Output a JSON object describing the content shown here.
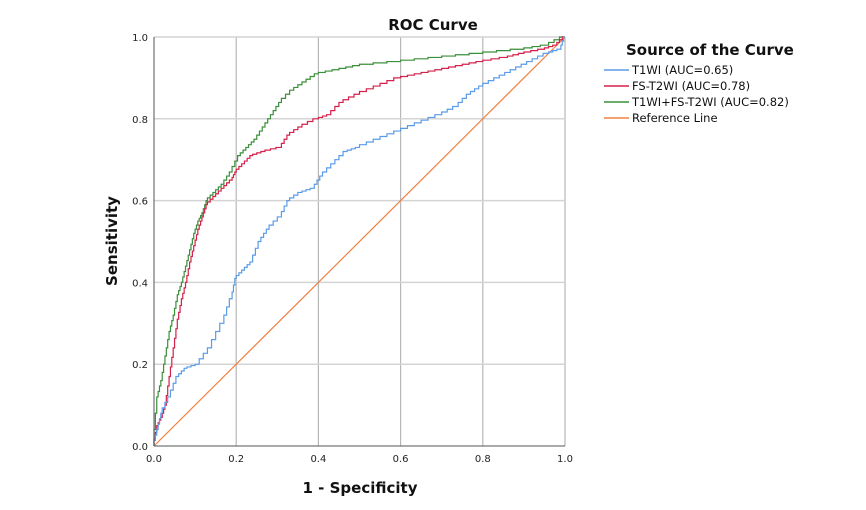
{
  "chart_data": {
    "type": "line",
    "title": "ROC Curve",
    "xlabel": "1 - Specificity",
    "ylabel": "Sensitivity",
    "xlim": [
      0,
      1
    ],
    "ylim": [
      0,
      1
    ],
    "xticks": [
      "0.0",
      "0.2",
      "0.4",
      "0.6",
      "0.8",
      "1.0"
    ],
    "yticks": [
      "0.0",
      "0.2",
      "0.4",
      "0.6",
      "0.8",
      "1.0"
    ],
    "grid": true,
    "legend": {
      "title": "Source of the Curve",
      "position": "right"
    },
    "series": [
      {
        "name": "T1WI (AUC=0.65)",
        "color": "#5b9be8",
        "step": true,
        "points": [
          [
            0,
            0
          ],
          [
            0.01,
            0.04
          ],
          [
            0.02,
            0.08
          ],
          [
            0.04,
            0.12
          ],
          [
            0.06,
            0.17
          ],
          [
            0.08,
            0.19
          ],
          [
            0.11,
            0.2
          ],
          [
            0.14,
            0.24
          ],
          [
            0.17,
            0.3
          ],
          [
            0.19,
            0.36
          ],
          [
            0.2,
            0.41
          ],
          [
            0.22,
            0.43
          ],
          [
            0.24,
            0.45
          ],
          [
            0.26,
            0.5
          ],
          [
            0.28,
            0.53
          ],
          [
            0.31,
            0.56
          ],
          [
            0.33,
            0.6
          ],
          [
            0.36,
            0.62
          ],
          [
            0.39,
            0.63
          ],
          [
            0.41,
            0.66
          ],
          [
            0.44,
            0.69
          ],
          [
            0.47,
            0.72
          ],
          [
            0.5,
            0.73
          ],
          [
            0.55,
            0.75
          ],
          [
            0.6,
            0.77
          ],
          [
            0.65,
            0.79
          ],
          [
            0.7,
            0.81
          ],
          [
            0.74,
            0.83
          ],
          [
            0.77,
            0.86
          ],
          [
            0.8,
            0.88
          ],
          [
            0.84,
            0.9
          ],
          [
            0.88,
            0.92
          ],
          [
            0.92,
            0.94
          ],
          [
            0.96,
            0.96
          ],
          [
            0.99,
            0.97
          ],
          [
            1,
            1
          ]
        ]
      },
      {
        "name": "FS-T2WI (AUC=0.78)",
        "color": "#d4204a",
        "step": true,
        "points": [
          [
            0,
            0
          ],
          [
            0.01,
            0.05
          ],
          [
            0.02,
            0.07
          ],
          [
            0.03,
            0.1
          ],
          [
            0.04,
            0.17
          ],
          [
            0.05,
            0.24
          ],
          [
            0.06,
            0.31
          ],
          [
            0.07,
            0.36
          ],
          [
            0.08,
            0.4
          ],
          [
            0.09,
            0.45
          ],
          [
            0.1,
            0.49
          ],
          [
            0.11,
            0.53
          ],
          [
            0.12,
            0.56
          ],
          [
            0.13,
            0.59
          ],
          [
            0.15,
            0.61
          ],
          [
            0.17,
            0.63
          ],
          [
            0.19,
            0.65
          ],
          [
            0.2,
            0.67
          ],
          [
            0.22,
            0.69
          ],
          [
            0.24,
            0.71
          ],
          [
            0.27,
            0.72
          ],
          [
            0.31,
            0.73
          ],
          [
            0.33,
            0.76
          ],
          [
            0.36,
            0.78
          ],
          [
            0.4,
            0.8
          ],
          [
            0.43,
            0.81
          ],
          [
            0.46,
            0.84
          ],
          [
            0.5,
            0.86
          ],
          [
            0.55,
            0.88
          ],
          [
            0.6,
            0.9
          ],
          [
            0.65,
            0.91
          ],
          [
            0.7,
            0.92
          ],
          [
            0.75,
            0.93
          ],
          [
            0.8,
            0.94
          ],
          [
            0.86,
            0.95
          ],
          [
            0.9,
            0.96
          ],
          [
            0.95,
            0.97
          ],
          [
            0.98,
            0.98
          ],
          [
            1,
            1
          ]
        ]
      },
      {
        "name": "T1WI+FS-T2WI (AUC=0.82)",
        "color": "#3a8f3a",
        "step": true,
        "points": [
          [
            0,
            0
          ],
          [
            0.01,
            0.12
          ],
          [
            0.02,
            0.16
          ],
          [
            0.03,
            0.22
          ],
          [
            0.04,
            0.28
          ],
          [
            0.05,
            0.32
          ],
          [
            0.06,
            0.37
          ],
          [
            0.07,
            0.4
          ],
          [
            0.08,
            0.44
          ],
          [
            0.09,
            0.48
          ],
          [
            0.1,
            0.52
          ],
          [
            0.11,
            0.55
          ],
          [
            0.12,
            0.57
          ],
          [
            0.13,
            0.6
          ],
          [
            0.15,
            0.62
          ],
          [
            0.17,
            0.64
          ],
          [
            0.19,
            0.67
          ],
          [
            0.21,
            0.71
          ],
          [
            0.23,
            0.73
          ],
          [
            0.25,
            0.75
          ],
          [
            0.27,
            0.78
          ],
          [
            0.29,
            0.81
          ],
          [
            0.31,
            0.84
          ],
          [
            0.34,
            0.87
          ],
          [
            0.37,
            0.89
          ],
          [
            0.4,
            0.91
          ],
          [
            0.45,
            0.92
          ],
          [
            0.5,
            0.93
          ],
          [
            0.6,
            0.94
          ],
          [
            0.7,
            0.95
          ],
          [
            0.8,
            0.96
          ],
          [
            0.9,
            0.97
          ],
          [
            0.96,
            0.98
          ],
          [
            1,
            1
          ]
        ]
      },
      {
        "name": "Reference Line",
        "color": "#f08040",
        "step": false,
        "points": [
          [
            0,
            0
          ],
          [
            1,
            1
          ]
        ]
      }
    ]
  }
}
